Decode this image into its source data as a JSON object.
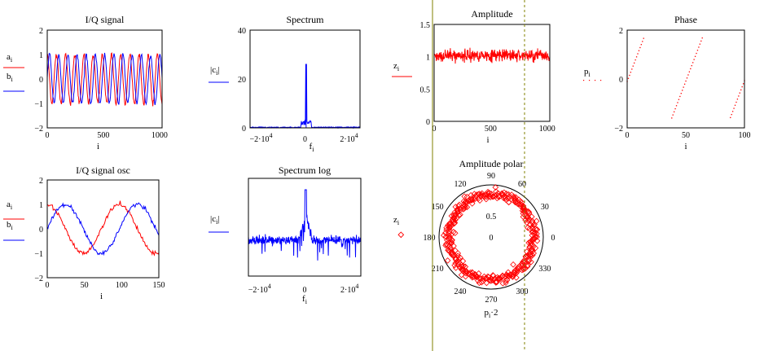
{
  "colors": {
    "red": "#ff0000",
    "blue": "#0000ff",
    "vline": "#808000"
  },
  "charts": {
    "iq": {
      "title": "I/Q signal",
      "xlabel": "i",
      "legend": [
        {
          "label": "a",
          "sub": "i",
          "color": "#ff0000"
        },
        {
          "label": "b",
          "sub": "i",
          "color": "#0000ff"
        }
      ],
      "xticks": [
        "0",
        "500",
        "1000"
      ],
      "yticks": [
        "2",
        "1",
        "0",
        "−1",
        "−2"
      ]
    },
    "spectrum": {
      "title": "Spectrum",
      "xlabel": {
        "label": "f",
        "sub": "i"
      },
      "legend": [
        {
          "label": "|c",
          "sub": "i",
          "suffix": "|",
          "color": "#0000ff"
        }
      ],
      "xticks": [
        {
          "base": "−2·10",
          "sup": "4"
        },
        {
          "base": "0",
          "sup": ""
        },
        {
          "base": "2·10",
          "sup": "4"
        }
      ],
      "yticks": [
        "40",
        "20",
        "0"
      ]
    },
    "amplitude": {
      "title": "Amplitude",
      "xlabel": "i",
      "legend": [
        {
          "label": "z",
          "sub": "i",
          "color": "#ff0000"
        }
      ],
      "xticks": [
        "0",
        "500",
        "1000"
      ],
      "yticks": [
        "1.5",
        "1",
        "0.5",
        "0"
      ]
    },
    "phase": {
      "title": "Phase",
      "xlabel": "i",
      "legend": [
        {
          "label": "p",
          "sub": "i",
          "color": "#ff0000"
        }
      ],
      "xticks": [
        "0",
        "50",
        "100"
      ],
      "yticks": [
        "2",
        "0",
        "−2"
      ]
    },
    "iqosc": {
      "title": "I/Q signal osc",
      "xlabel": "i",
      "legend": [
        {
          "label": "a",
          "sub": "i",
          "color": "#ff0000"
        },
        {
          "label": "b",
          "sub": "i",
          "color": "#0000ff"
        }
      ],
      "xticks": [
        "0",
        "50",
        "100",
        "150"
      ],
      "yticks": [
        "2",
        "1",
        "0",
        "−1",
        "−2"
      ]
    },
    "spectrumlog": {
      "title": "Spectrum log",
      "xlabel": {
        "label": "f",
        "sub": "i"
      },
      "legend": [
        {
          "label": "|c",
          "sub": "i",
          "suffix": "|",
          "color": "#0000ff"
        }
      ],
      "xticks": [
        {
          "base": "−2·10",
          "sup": "4"
        },
        {
          "base": "0",
          "sup": ""
        },
        {
          "base": "2·10",
          "sup": "4"
        }
      ]
    },
    "polar": {
      "title": "Amplitude polar",
      "xlabel": {
        "label": "p",
        "sub": "i",
        "suffix": "·2"
      },
      "legend": [
        {
          "label": "z",
          "sub": "i",
          "color": "#ff0000"
        }
      ],
      "angles": [
        "90",
        "60",
        "30",
        "0",
        "330",
        "300",
        "270",
        "240",
        "210",
        "180",
        "150",
        "120"
      ],
      "rlabels": [
        "0.5",
        "0"
      ]
    }
  },
  "chart_data": [
    {
      "type": "line",
      "title": "I/Q signal",
      "xlabel": "i",
      "xlim": [
        0,
        1023
      ],
      "ylim": [
        -2,
        2
      ],
      "series": [
        {
          "name": "a",
          "style": "cos",
          "cycles": 12.5,
          "amp": 1,
          "noise": 0.08
        },
        {
          "name": "b",
          "style": "sin",
          "cycles": 12.5,
          "amp": 1,
          "noise": 0.08
        }
      ]
    },
    {
      "type": "line",
      "title": "Spectrum",
      "xlabel": "f",
      "xlim": [
        -25000,
        25000
      ],
      "ylim": [
        0,
        40
      ],
      "peak": {
        "x": 500,
        "y": 26
      },
      "floor": 0.3
    },
    {
      "type": "line",
      "title": "Amplitude",
      "xlabel": "i",
      "xlim": [
        0,
        1023
      ],
      "ylim": [
        0,
        1.5
      ],
      "mean": 1.02,
      "noise": 0.08
    },
    {
      "type": "scatter",
      "title": "Phase",
      "xlabel": "i",
      "xlim": [
        0,
        100
      ],
      "ylim": [
        -2,
        2
      ],
      "wraps_at": [
        22,
        72
      ],
      "slope": 0.126
    },
    {
      "type": "line",
      "title": "I/Q signal osc",
      "xlabel": "i",
      "xlim": [
        0,
        150
      ],
      "ylim": [
        -2,
        2
      ],
      "series": [
        {
          "name": "a",
          "style": "cos",
          "period": 97,
          "amp": 1,
          "noise": 0.08
        },
        {
          "name": "b",
          "style": "sin",
          "period": 97,
          "amp": 1,
          "noise": 0.08
        }
      ]
    },
    {
      "type": "line",
      "title": "Spectrum log",
      "xlabel": "f",
      "xlim": [
        -25000,
        25000
      ],
      "log": true,
      "peak": {
        "x": 500
      }
    },
    {
      "type": "scatter",
      "title": "Amplitude polar",
      "xlabel": "p·2",
      "rmax": 1.2,
      "radius_mean": 0.98,
      "radius_noise": 0.1
    }
  ]
}
